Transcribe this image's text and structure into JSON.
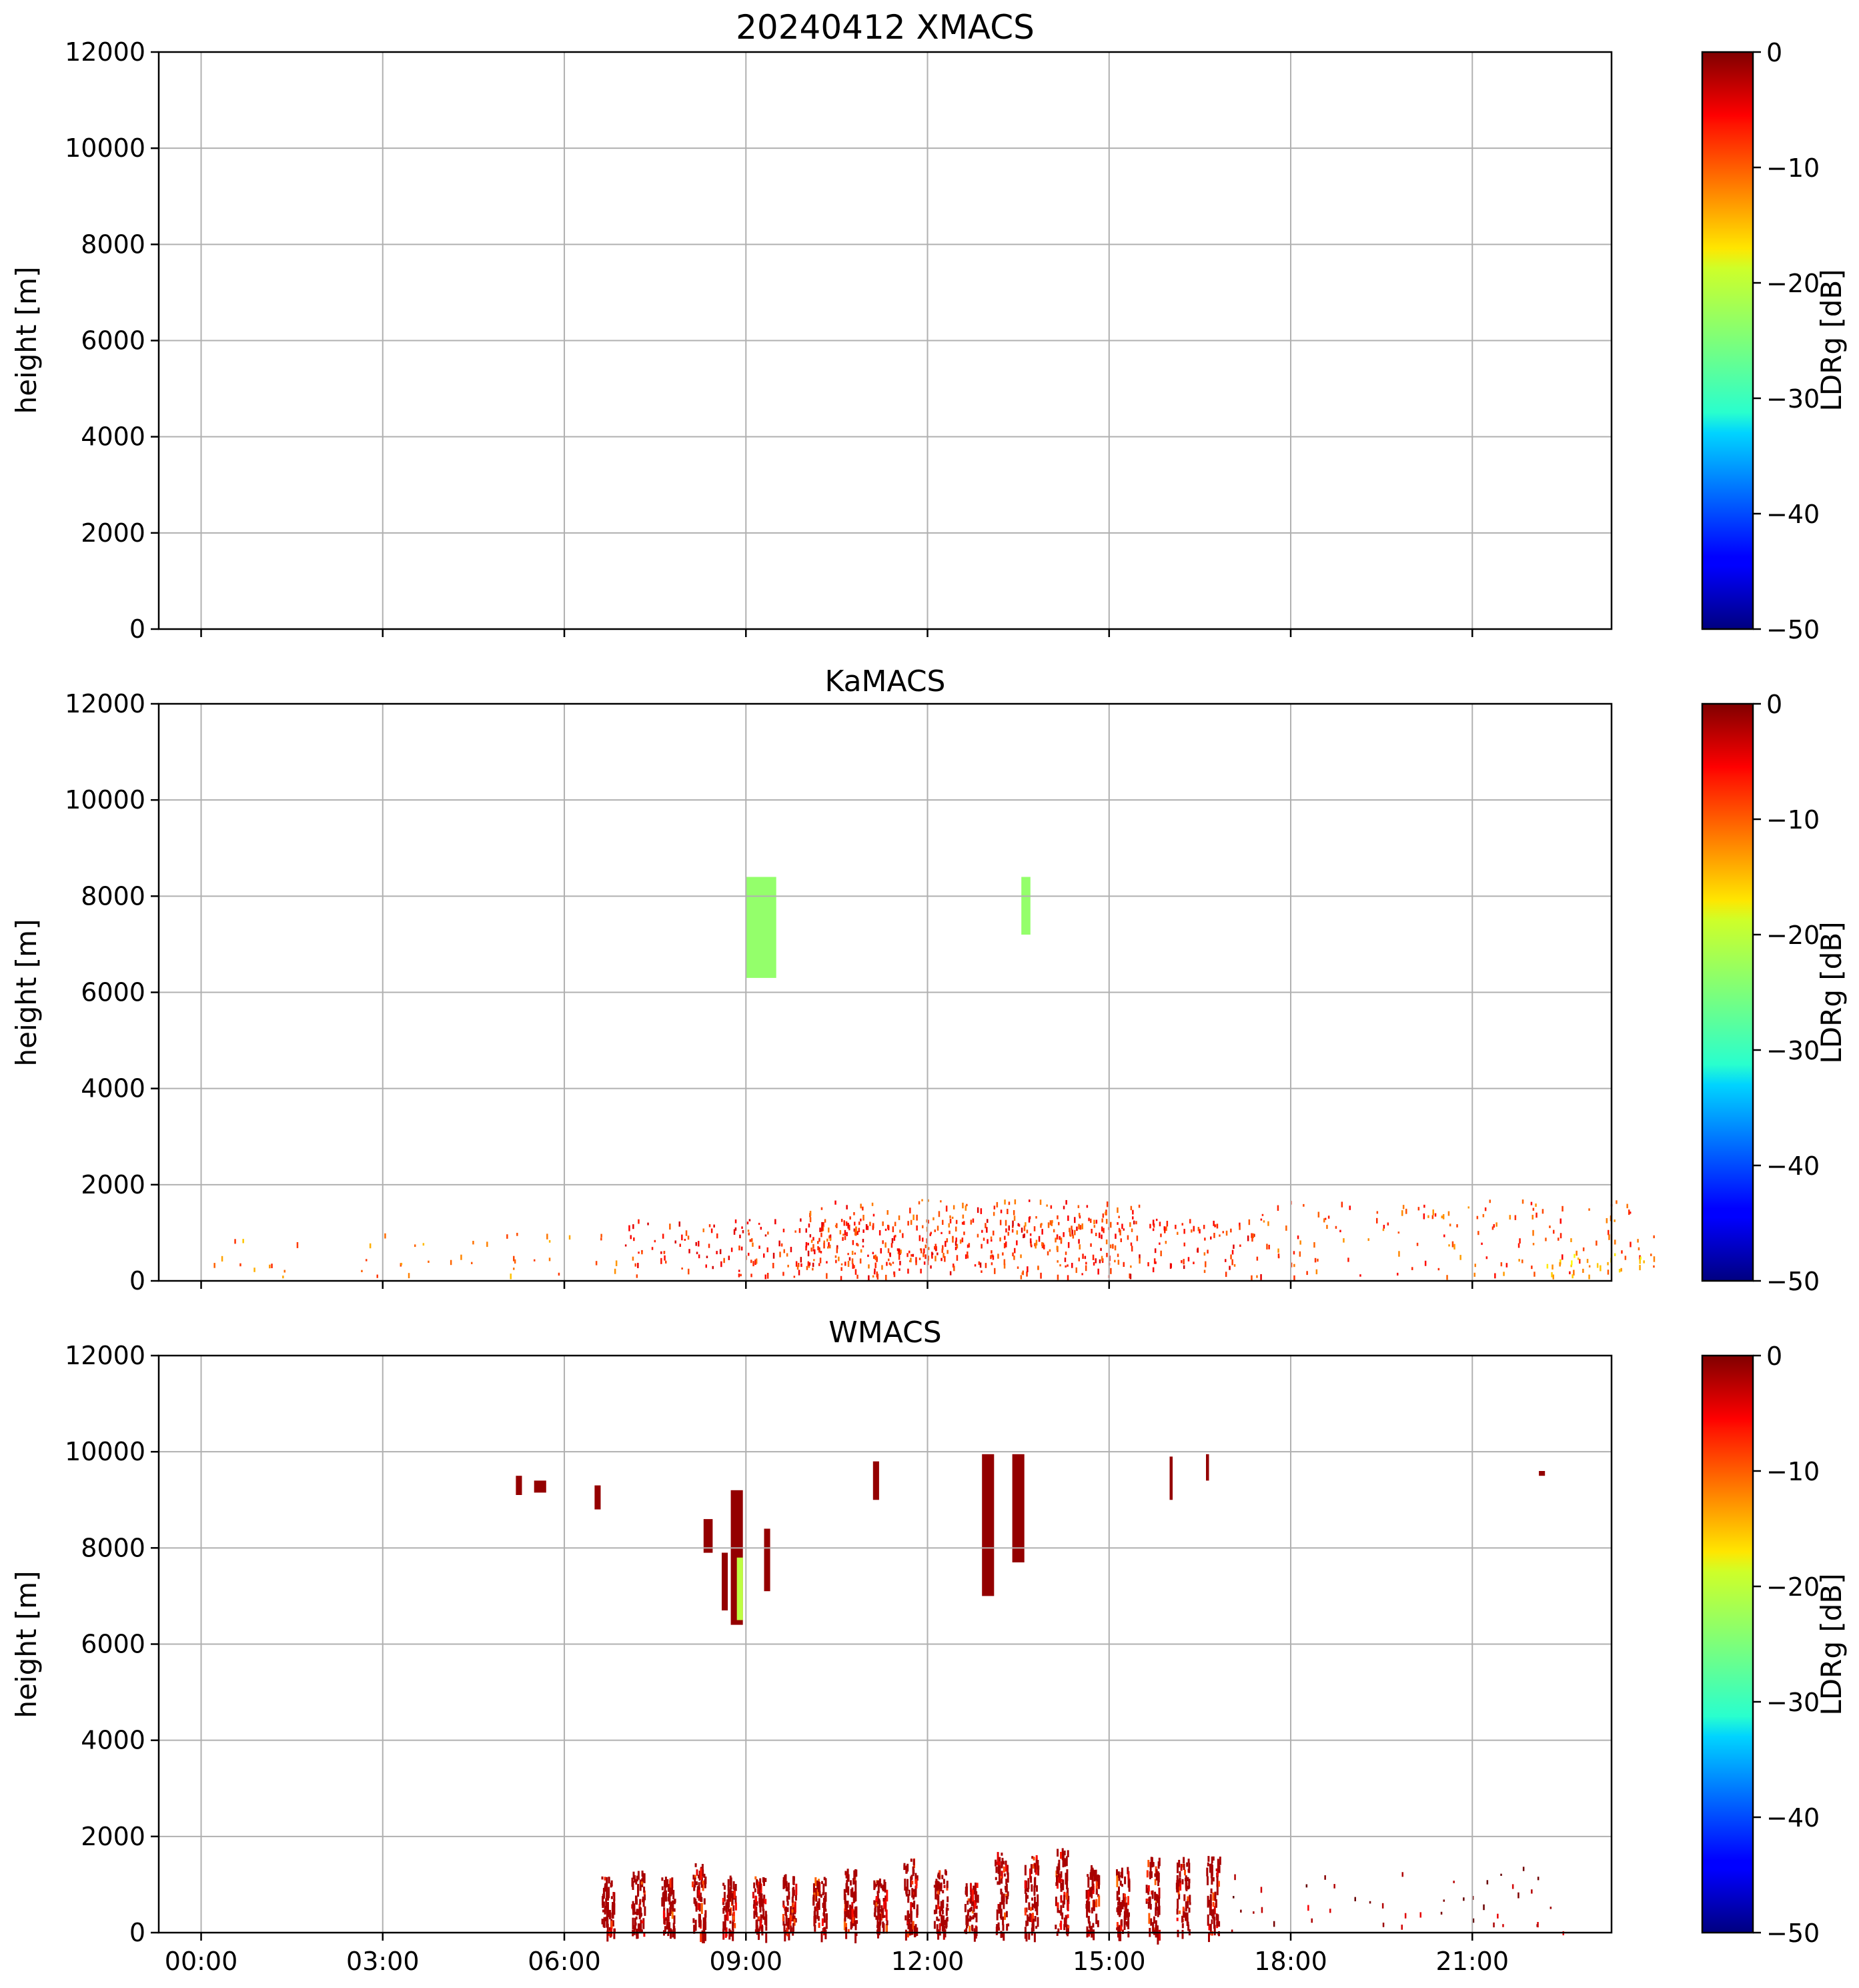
{
  "chart_data": [
    {
      "type": "heatmap",
      "title": "20240412 XMACS",
      "xlabel": "",
      "ylabel": "height [m]",
      "ylim": [
        0,
        12000
      ],
      "yticks": [
        "0",
        "2000",
        "4000",
        "6000",
        "8000",
        "10000",
        "12000"
      ],
      "xticks": [],
      "grid": true,
      "colorbar": {
        "label": "LDRg [dB]",
        "colormap": "jet",
        "range": [
          -50,
          0
        ],
        "ticks": [
          "0",
          "−10",
          "−20",
          "−30",
          "−40",
          "−50"
        ]
      },
      "regions": []
    },
    {
      "type": "heatmap",
      "title": "KaMACS",
      "xlabel": "",
      "ylabel": "height [m]",
      "ylim": [
        0,
        12000
      ],
      "yticks": [
        "0",
        "2000",
        "4000",
        "6000",
        "8000",
        "10000",
        "12000"
      ],
      "xticks": [],
      "grid": true,
      "colorbar": {
        "label": "LDRg [dB]",
        "colormap": "jet",
        "range": [
          -50,
          0
        ],
        "ticks": [
          "0",
          "−10",
          "−20",
          "−30",
          "−40",
          "−50"
        ]
      },
      "regions": [
        {
          "t0": 9.0,
          "t1": 9.5,
          "h0": 6300,
          "h1": 8400,
          "ldr": -24
        },
        {
          "t0": 13.55,
          "t1": 13.7,
          "h0": 7200,
          "h1": 8400,
          "ldr": -24
        },
        {
          "t0": 7.0,
          "t1": 17.5,
          "h0": 100,
          "h1": 1300,
          "ldr": -8,
          "speckle": 0.7
        },
        {
          "t0": 10.0,
          "t1": 15.5,
          "h0": 300,
          "h1": 1700,
          "ldr": -9,
          "speckle": 0.75
        },
        {
          "t0": 0.0,
          "t1": 7.0,
          "h0": 100,
          "h1": 1000,
          "ldr": -12,
          "speckle": 0.15
        },
        {
          "t0": 17.5,
          "t1": 24.0,
          "h0": 100,
          "h1": 1700,
          "ldr": -10,
          "speckle": 0.3
        },
        {
          "t0": 22.0,
          "t1": 24.0,
          "h0": 100,
          "h1": 600,
          "ldr": -16,
          "speckle": 0.5
        }
      ]
    },
    {
      "type": "heatmap",
      "title": "WMACS",
      "xlabel": "",
      "ylabel": "height [m]",
      "ylim": [
        0,
        12000
      ],
      "yticks": [
        "0",
        "2000",
        "4000",
        "6000",
        "8000",
        "10000",
        "12000"
      ],
      "xticks": [
        "00:00",
        "03:00",
        "06:00",
        "09:00",
        "12:00",
        "15:00",
        "18:00",
        "21:00"
      ],
      "xtick_hours": [
        0,
        3,
        6,
        9,
        12,
        15,
        18,
        21
      ],
      "xlim_hours": [
        -0.7,
        23.3
      ],
      "grid": true,
      "colorbar": {
        "label": "LDRg [dB]",
        "colormap": "jet",
        "range": [
          -50,
          0
        ],
        "ticks": [
          "0",
          "−10",
          "−20",
          "−30",
          "−40",
          "−50"
        ]
      },
      "regions": [
        {
          "t0": 5.2,
          "t1": 5.3,
          "h0": 9100,
          "h1": 9500,
          "ldr": -1
        },
        {
          "t0": 5.5,
          "t1": 5.7,
          "h0": 9150,
          "h1": 9400,
          "ldr": -1
        },
        {
          "t0": 6.5,
          "t1": 6.6,
          "h0": 8800,
          "h1": 9300,
          "ldr": -1
        },
        {
          "t0": 8.3,
          "t1": 8.45,
          "h0": 7900,
          "h1": 8600,
          "ldr": -1
        },
        {
          "t0": 8.6,
          "t1": 8.7,
          "h0": 6700,
          "h1": 7900,
          "ldr": -1
        },
        {
          "t0": 8.75,
          "t1": 8.95,
          "h0": 6400,
          "h1": 9200,
          "ldr": -1
        },
        {
          "t0": 8.85,
          "t1": 8.95,
          "h0": 6500,
          "h1": 7800,
          "ldr": -22
        },
        {
          "t0": 9.3,
          "t1": 9.4,
          "h0": 7100,
          "h1": 8400,
          "ldr": -1
        },
        {
          "t0": 11.1,
          "t1": 11.2,
          "h0": 9000,
          "h1": 9800,
          "ldr": -1
        },
        {
          "t0": 12.9,
          "t1": 13.1,
          "h0": 7000,
          "h1": 9950,
          "ldr": -1
        },
        {
          "t0": 13.4,
          "t1": 13.6,
          "h0": 7700,
          "h1": 9950,
          "ldr": -1
        },
        {
          "t0": 16.0,
          "t1": 16.05,
          "h0": 9000,
          "h1": 9900,
          "ldr": -1
        },
        {
          "t0": 16.6,
          "t1": 16.65,
          "h0": 9400,
          "h1": 9950,
          "ldr": -1
        },
        {
          "t0": 22.1,
          "t1": 22.2,
          "h0": 9500,
          "h1": 9600,
          "ldr": -1
        },
        {
          "t0": 6.5,
          "t1": 17.0,
          "h0": 0,
          "h1": 1800,
          "ldr": -2,
          "columns": true
        },
        {
          "t0": 17.0,
          "t1": 22.5,
          "h0": 0,
          "h1": 1400,
          "ldr": -2,
          "speckle": 0.12
        }
      ]
    }
  ]
}
